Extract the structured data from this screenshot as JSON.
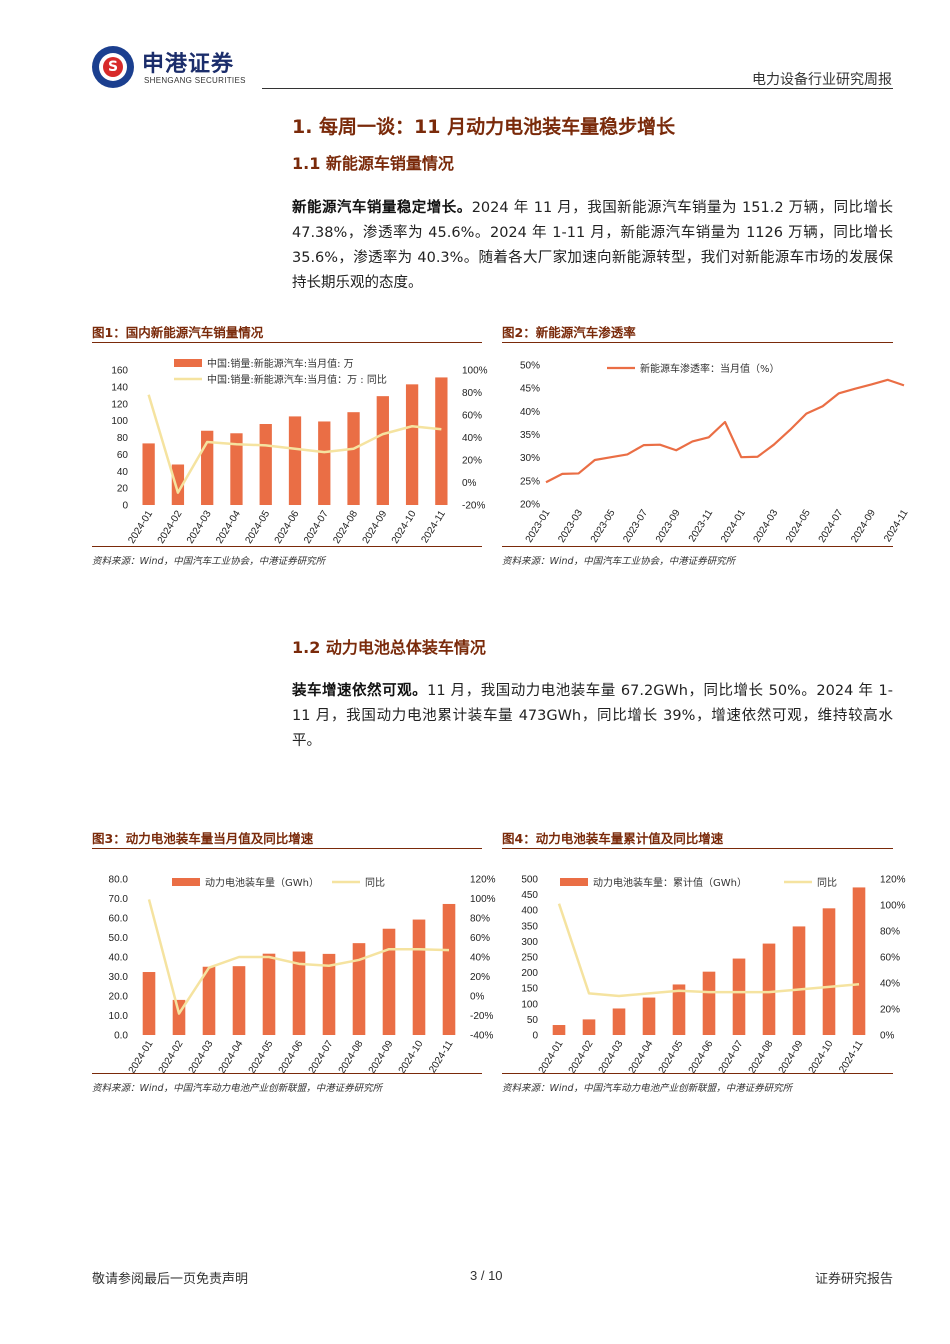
{
  "header": {
    "logo_cn": "申港证券",
    "logo_en": "SHENGANG SECURITIES",
    "title": "电力设备行业研究周报"
  },
  "section1": {
    "heading": "1. 每周一谈：11 月动力电池装车量稳步增长",
    "sub1": "1.1 新能源车销量情况",
    "para1_bold": "新能源汽车销量稳定增长。",
    "para1_rest": "2024 年 11 月，我国新能源汽车销量为 151.2 万辆，同比增长 47.38%，渗透率为 45.6%。2024 年 1-11 月，新能源汽车销量为 1126 万辆，同比增长 35.6%，渗透率为 40.3%。随着各大厂家加速向新能源转型，我们对新能源车市场的发展保持长期乐观的态度。",
    "sub2": "1.2 动力电池总体装车情况",
    "para2_bold": "装车增速依然可观。",
    "para2_rest": "11 月，我国动力电池装车量 67.2GWh，同比增长 50%。2024 年 1-11 月，我国动力电池累计装车量 473GWh，同比增长 39%，增速依然可观，维持较高水平。"
  },
  "figures": {
    "fig1": {
      "title": "图1：国内新能源汽车销量情况",
      "source": "资料来源：Wind，中国汽车工业协会，中港证券研究所"
    },
    "fig2": {
      "title": "图2：新能源汽车渗透率",
      "source": "资料来源：Wind，中国汽车工业协会，中港证券研究所"
    },
    "fig3": {
      "title": "图3：动力电池装车量当月值及同比增速",
      "source": "资料来源：Wind，中国汽车动力电池产业创新联盟，中港证券研究所"
    },
    "fig4": {
      "title": "图4：动力电池装车量累计值及同比增速",
      "source": "资料来源：Wind，中国汽车动力电池产业创新联盟，中港证券研究所"
    }
  },
  "chart_data": [
    {
      "id": "fig1",
      "type": "bar",
      "categories": [
        "2024-01",
        "2024-02",
        "2024-03",
        "2024-04",
        "2024-05",
        "2024-06",
        "2024-07",
        "2024-08",
        "2024-09",
        "2024-10",
        "2024-11"
      ],
      "series": [
        {
          "name": "中国:销量:新能源汽车:当月值: 万",
          "kind": "bar",
          "axis": "left",
          "values": [
            73,
            48,
            88,
            85,
            96,
            105,
            99,
            110,
            129,
            143,
            151.2
          ]
        },
        {
          "name": "中国:销量:新能源汽车:当月值：万 : 同比",
          "kind": "line",
          "axis": "right",
          "values": [
            78,
            -9,
            36,
            34,
            33,
            30,
            27,
            30,
            43,
            50,
            47.38
          ]
        }
      ],
      "ylim_left": [
        0,
        160
      ],
      "yticks_left": [
        "0",
        "20",
        "40",
        "60",
        "80",
        "100",
        "120",
        "140",
        "160"
      ],
      "ylim_right": [
        -20,
        100
      ],
      "yticks_right": [
        "-20%",
        "0%",
        "20%",
        "40%",
        "60%",
        "80%",
        "100%"
      ],
      "legend": "top-left",
      "colors": {
        "bar": "#ea6e45",
        "line": "#f5e3a0"
      }
    },
    {
      "id": "fig2",
      "type": "line",
      "x": [
        "2023-01",
        "2023-02",
        "2023-03",
        "2023-04",
        "2023-05",
        "2023-06",
        "2023-07",
        "2023-08",
        "2023-09",
        "2023-10",
        "2023-11",
        "2023-12",
        "2024-01",
        "2024-02",
        "2024-03",
        "2024-04",
        "2024-05",
        "2024-06",
        "2024-07",
        "2024-08",
        "2024-09",
        "2024-10",
        "2024-11"
      ],
      "xticks": [
        "2023-01",
        "2023-03",
        "2023-05",
        "2023-07",
        "2023-09",
        "2023-11",
        "2024-01",
        "2024-03",
        "2024-05",
        "2024-07",
        "2024-09",
        "2024-11"
      ],
      "series": [
        {
          "name": "新能源车渗透率：当月值（%）",
          "values": [
            24.7,
            26.5,
            26.6,
            29.5,
            30.1,
            30.7,
            32.7,
            32.8,
            31.6,
            33.5,
            34.4,
            37.7,
            30.1,
            30.2,
            32.8,
            36.0,
            39.5,
            41.1,
            43.9,
            44.9,
            45.8,
            46.8,
            45.6
          ]
        }
      ],
      "ylim": [
        20,
        50
      ],
      "yticks": [
        "20%",
        "25%",
        "30%",
        "35%",
        "40%",
        "45%",
        "50%"
      ],
      "legend": "top-left",
      "colors": {
        "line": "#ea6e45"
      }
    },
    {
      "id": "fig3",
      "type": "bar",
      "categories": [
        "2024-01",
        "2024-02",
        "2024-03",
        "2024-04",
        "2024-05",
        "2024-06",
        "2024-07",
        "2024-08",
        "2024-09",
        "2024-10",
        "2024-11"
      ],
      "series": [
        {
          "name": "动力电池装车量（GWh）",
          "kind": "bar",
          "axis": "left",
          "values": [
            32.3,
            18.0,
            35.0,
            35.3,
            41.7,
            42.8,
            41.6,
            47.1,
            54.5,
            59.2,
            67.2
          ]
        },
        {
          "name": "同比",
          "kind": "line",
          "axis": "right",
          "values": [
            99,
            -18,
            29,
            40,
            40,
            33,
            31,
            37,
            48,
            48,
            47
          ]
        }
      ],
      "ylim_left": [
        0,
        80
      ],
      "yticks_left": [
        "0.0",
        "10.0",
        "20.0",
        "30.0",
        "40.0",
        "50.0",
        "60.0",
        "70.0",
        "80.0"
      ],
      "ylim_right": [
        -40,
        120
      ],
      "yticks_right": [
        "-40%",
        "-20%",
        "0%",
        "20%",
        "40%",
        "60%",
        "80%",
        "100%",
        "120%"
      ],
      "legend": "top",
      "colors": {
        "bar": "#ea6e45",
        "line": "#f5e3a0"
      }
    },
    {
      "id": "fig4",
      "type": "bar",
      "categories": [
        "2024-01",
        "2024-02",
        "2024-03",
        "2024-04",
        "2024-05",
        "2024-06",
        "2024-07",
        "2024-08",
        "2024-09",
        "2024-10",
        "2024-11"
      ],
      "series": [
        {
          "name": "动力电池装车量：累计值（GWh）",
          "kind": "bar",
          "axis": "left",
          "values": [
            32,
            50,
            85,
            120,
            162,
            203,
            245,
            293,
            348,
            406,
            473
          ]
        },
        {
          "name": "同比",
          "kind": "line",
          "axis": "right",
          "values": [
            101,
            32,
            30,
            32,
            34,
            33,
            33,
            33,
            35,
            37,
            39
          ]
        }
      ],
      "ylim_left": [
        0,
        500
      ],
      "yticks_left": [
        "0",
        "50",
        "100",
        "150",
        "200",
        "250",
        "300",
        "350",
        "400",
        "450",
        "500"
      ],
      "ylim_right": [
        0,
        120
      ],
      "yticks_right": [
        "0%",
        "20%",
        "40%",
        "60%",
        "80%",
        "100%",
        "120%"
      ],
      "legend": "top",
      "colors": {
        "bar": "#ea6e45",
        "line": "#f5e3a0"
      }
    }
  ],
  "footer": {
    "left": "敬请参阅最后一页免责声明",
    "center": "3 / 10",
    "right": "证券研究报告"
  }
}
